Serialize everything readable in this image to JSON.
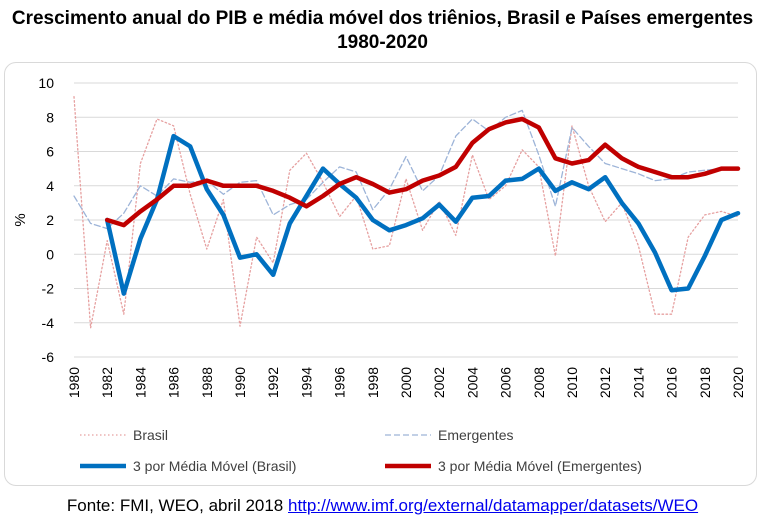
{
  "title": {
    "line1": "Crescimento anual do PIB e média móvel dos triênios, Brasil e Países emergentes",
    "line2": "1980-2020"
  },
  "source": {
    "text": "Fonte: FMI, WEO, abril 2018",
    "link": "http://www.imf.org/external/datamapper/datasets/WEO"
  },
  "chart_data": {
    "type": "line",
    "title": "Crescimento anual do PIB e média móvel dos triênios, Brasil e Países emergentes 1980-2020",
    "xlabel": "",
    "ylabel": "%",
    "ylim": [
      -6,
      10
    ],
    "yticks": [
      -6,
      -4,
      -2,
      0,
      2,
      4,
      6,
      8,
      10
    ],
    "xticks": [
      1980,
      1982,
      1984,
      1986,
      1988,
      1990,
      1992,
      1994,
      1996,
      1998,
      2000,
      2002,
      2004,
      2006,
      2008,
      2010,
      2012,
      2014,
      2016,
      2018,
      2020
    ],
    "grid": true,
    "legend_position": "bottom",
    "x": [
      1980,
      1981,
      1982,
      1983,
      1984,
      1985,
      1986,
      1987,
      1988,
      1989,
      1990,
      1991,
      1992,
      1993,
      1994,
      1995,
      1996,
      1997,
      1998,
      1999,
      2000,
      2001,
      2002,
      2003,
      2004,
      2005,
      2006,
      2007,
      2008,
      2009,
      2010,
      2011,
      2012,
      2013,
      2014,
      2015,
      2016,
      2017,
      2018,
      2019,
      2020
    ],
    "series": [
      {
        "name": "Brasil",
        "color": "#e6a0a0",
        "style": "dotted",
        "values": [
          9.2,
          -4.3,
          0.8,
          -3.5,
          5.3,
          7.9,
          7.5,
          3.5,
          0.3,
          3.2,
          -4.2,
          1.0,
          -0.5,
          4.9,
          5.9,
          4.2,
          2.2,
          3.4,
          0.3,
          0.5,
          4.4,
          1.4,
          3.1,
          1.1,
          5.8,
          3.2,
          4.0,
          6.1,
          5.1,
          -0.1,
          7.5,
          4.0,
          1.9,
          3.0,
          0.5,
          -3.5,
          -3.5,
          1.0,
          2.3,
          2.5,
          2.2
        ]
      },
      {
        "name": "Emergentes",
        "color": "#9db4d8",
        "style": "dashed",
        "values": [
          3.4,
          1.8,
          1.5,
          2.4,
          4.0,
          3.4,
          4.4,
          4.2,
          4.3,
          3.5,
          4.2,
          4.3,
          2.3,
          2.9,
          3.2,
          4.2,
          5.1,
          4.8,
          2.6,
          3.8,
          5.7,
          3.7,
          4.6,
          6.9,
          7.9,
          7.2,
          8.0,
          8.4,
          5.8,
          2.8,
          7.4,
          6.3,
          5.3,
          5.0,
          4.7,
          4.3,
          4.4,
          4.8,
          4.9,
          5.0,
          5.0
        ]
      },
      {
        "name": "3 por Média Móvel (Brasil)",
        "color": "#0070c0",
        "style": "solid",
        "width": "thick",
        "values": [
          null,
          null,
          2.0,
          -2.3,
          0.9,
          3.2,
          6.9,
          6.3,
          3.8,
          2.3,
          -0.2,
          0.0,
          -1.2,
          1.8,
          3.4,
          5.0,
          4.1,
          3.3,
          2.0,
          1.4,
          1.7,
          2.1,
          2.9,
          1.9,
          3.3,
          3.4,
          4.3,
          4.4,
          5.0,
          3.7,
          4.2,
          3.8,
          4.5,
          3.0,
          1.8,
          0.1,
          -2.1,
          -2.0,
          -0.1,
          2.0,
          2.4
        ]
      },
      {
        "name": "3 por Média Móvel (Emergentes)",
        "color": "#c00000",
        "style": "solid",
        "width": "thick",
        "values": [
          null,
          null,
          2.0,
          1.7,
          2.5,
          3.2,
          4.0,
          4.0,
          4.3,
          4.0,
          4.0,
          4.0,
          3.7,
          3.3,
          2.8,
          3.4,
          4.1,
          4.5,
          4.1,
          3.6,
          3.8,
          4.3,
          4.6,
          5.1,
          6.5,
          7.3,
          7.7,
          7.9,
          7.4,
          5.6,
          5.3,
          5.5,
          6.4,
          5.6,
          5.1,
          4.8,
          4.5,
          4.5,
          4.7,
          5.0,
          5.0
        ]
      }
    ]
  }
}
